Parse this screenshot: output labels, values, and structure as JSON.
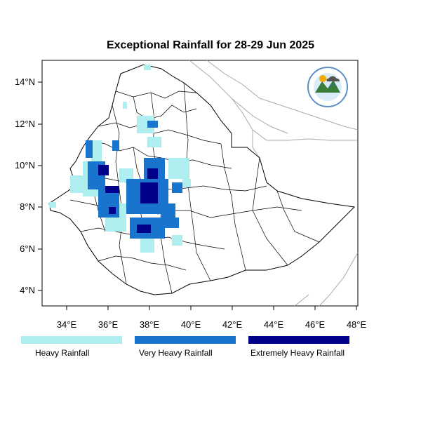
{
  "title": "Exceptional Rainfall for 28-29 Jun 2025",
  "lat_ticks": [
    "4°N",
    "6°N",
    "8°N",
    "10°N",
    "12°N",
    "14°N"
  ],
  "lon_ticks": [
    "34°E",
    "36°E",
    "38°E",
    "40°E",
    "42°E",
    "44°E",
    "46°E",
    "48°E"
  ],
  "legend": [
    {
      "label": "Heavy Rainfall",
      "color": "#afeeee"
    },
    {
      "label": "Very Heavy Rainfall",
      "color": "#1874cd"
    },
    {
      "label": "Extremely Heavy Rainfall",
      "color": "#00008b"
    }
  ],
  "logo": {
    "name": "ethiopian-meteorology-institute-logo"
  }
}
